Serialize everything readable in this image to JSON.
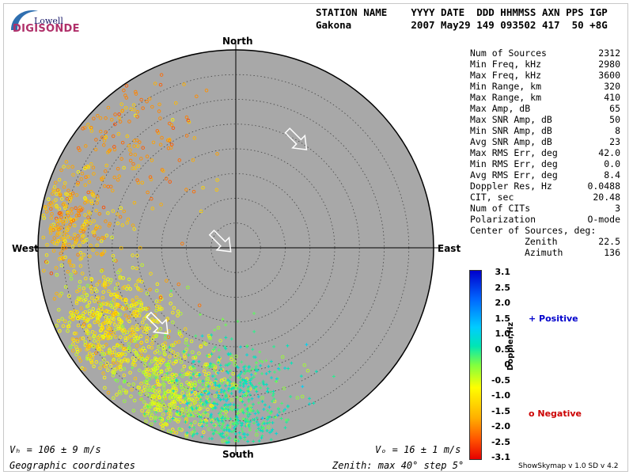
{
  "logo": {
    "top": "Lowell",
    "bottom": "DIGISONDE"
  },
  "header": {
    "line1": "STATION NAME    YYYY DATE  DDD HHMMSS AXN PPS IGP",
    "line2": "Gakona          2007 May29 149 093502 417  50 +8G"
  },
  "params": [
    {
      "label": "Num of Sources",
      "value": "2312"
    },
    {
      "label": "Min Freq, kHz",
      "value": "2980"
    },
    {
      "label": "Max Freq, kHz",
      "value": "3600"
    },
    {
      "label": "Min Range, km",
      "value": "320"
    },
    {
      "label": "Max Range, km",
      "value": "410"
    },
    {
      "label": "Max Amp, dB",
      "value": "65"
    },
    {
      "label": "Max SNR Amp, dB",
      "value": "50"
    },
    {
      "label": "Min SNR Amp, dB",
      "value": "8"
    },
    {
      "label": "Avg SNR Amp, dB",
      "value": "23"
    },
    {
      "label": "Max RMS Err, deg",
      "value": "42.0"
    },
    {
      "label": "Min RMS Err, deg",
      "value": "0.0"
    },
    {
      "label": "Avg RMS Err, deg",
      "value": "8.4"
    },
    {
      "label": "Doppler Res, Hz",
      "value": "0.0488"
    },
    {
      "label": "CIT, sec",
      "value": "20.48"
    },
    {
      "label": "Num of CITs",
      "value": "3"
    },
    {
      "label": "Polarization",
      "value": "O-mode"
    }
  ],
  "center_of_sources": {
    "title": "Center of Sources, deg:",
    "zenith_label": "Zenith",
    "zenith_value": "22.5",
    "azimuth_label": "Azimuth",
    "azimuth_value": "136"
  },
  "compass": {
    "north": "North",
    "south": "South",
    "east": "East",
    "west": "West"
  },
  "footer": {
    "vh": "Vₕ = 106 ± 9 m/s",
    "vz": "Vₒ = 16 ± 1 m/s",
    "coords": "Geographic coordinates",
    "zenith_info": "Zenith: max 40°  step 5°"
  },
  "legend": {
    "positive": "+ Positive",
    "negative": "o Negative"
  },
  "colorbar": {
    "title": "Doppler,Hz",
    "ticks": [
      "3.1",
      "2.5",
      "2.0",
      "1.5",
      "1.0",
      "0.5",
      "0",
      "-0.5",
      "-1.0",
      "-1.5",
      "-2.0",
      "-2.5",
      "-3.1"
    ],
    "min": -3.1,
    "max": 3.1
  },
  "credit": "ShowSkymap v 1.0   SD v 4.2",
  "chart_data": {
    "type": "scatter",
    "projection": "polar skymap",
    "zenith_max_deg": 40,
    "zenith_step_deg": 5,
    "center_zenith_deg": 22.5,
    "center_azimuth_deg": 136,
    "clusters": [
      {
        "name": "",
        "zenith_deg": 35,
        "azimuth_deg": 280,
        "doppler_hz": -1.5,
        "sign": "negative",
        "count": 300,
        "spread_deg": 5
      },
      {
        "name": "",
        "zenith_deg": 30,
        "azimuth_deg": 240,
        "doppler_hz": -1.0,
        "sign": "negative",
        "count": 600,
        "spread_deg": 6
      },
      {
        "name": "",
        "zenith_deg": 32,
        "azimuth_deg": 205,
        "doppler_hz": -0.5,
        "sign": "negative",
        "count": 600,
        "spread_deg": 6
      },
      {
        "name": "",
        "zenith_deg": 32,
        "azimuth_deg": 180,
        "doppler_hz": 0.5,
        "sign": "positive",
        "count": 600,
        "spread_deg": 6
      },
      {
        "name": "",
        "zenith_deg": 32,
        "azimuth_deg": 315,
        "doppler_hz": -1.8,
        "sign": "negative",
        "count": 200,
        "spread_deg": 8
      }
    ],
    "arrows": [
      {
        "zenith_deg": 25,
        "azimuth_deg": 30,
        "direction_deg": 135
      },
      {
        "zenith_deg": 3,
        "azimuth_deg": 290,
        "direction_deg": 135
      },
      {
        "zenith_deg": 22,
        "azimuth_deg": 225,
        "direction_deg": 135
      }
    ]
  },
  "colors": {
    "disk": "#a8a8a8",
    "positive": "#0000cc",
    "negative": "#cc0000"
  }
}
